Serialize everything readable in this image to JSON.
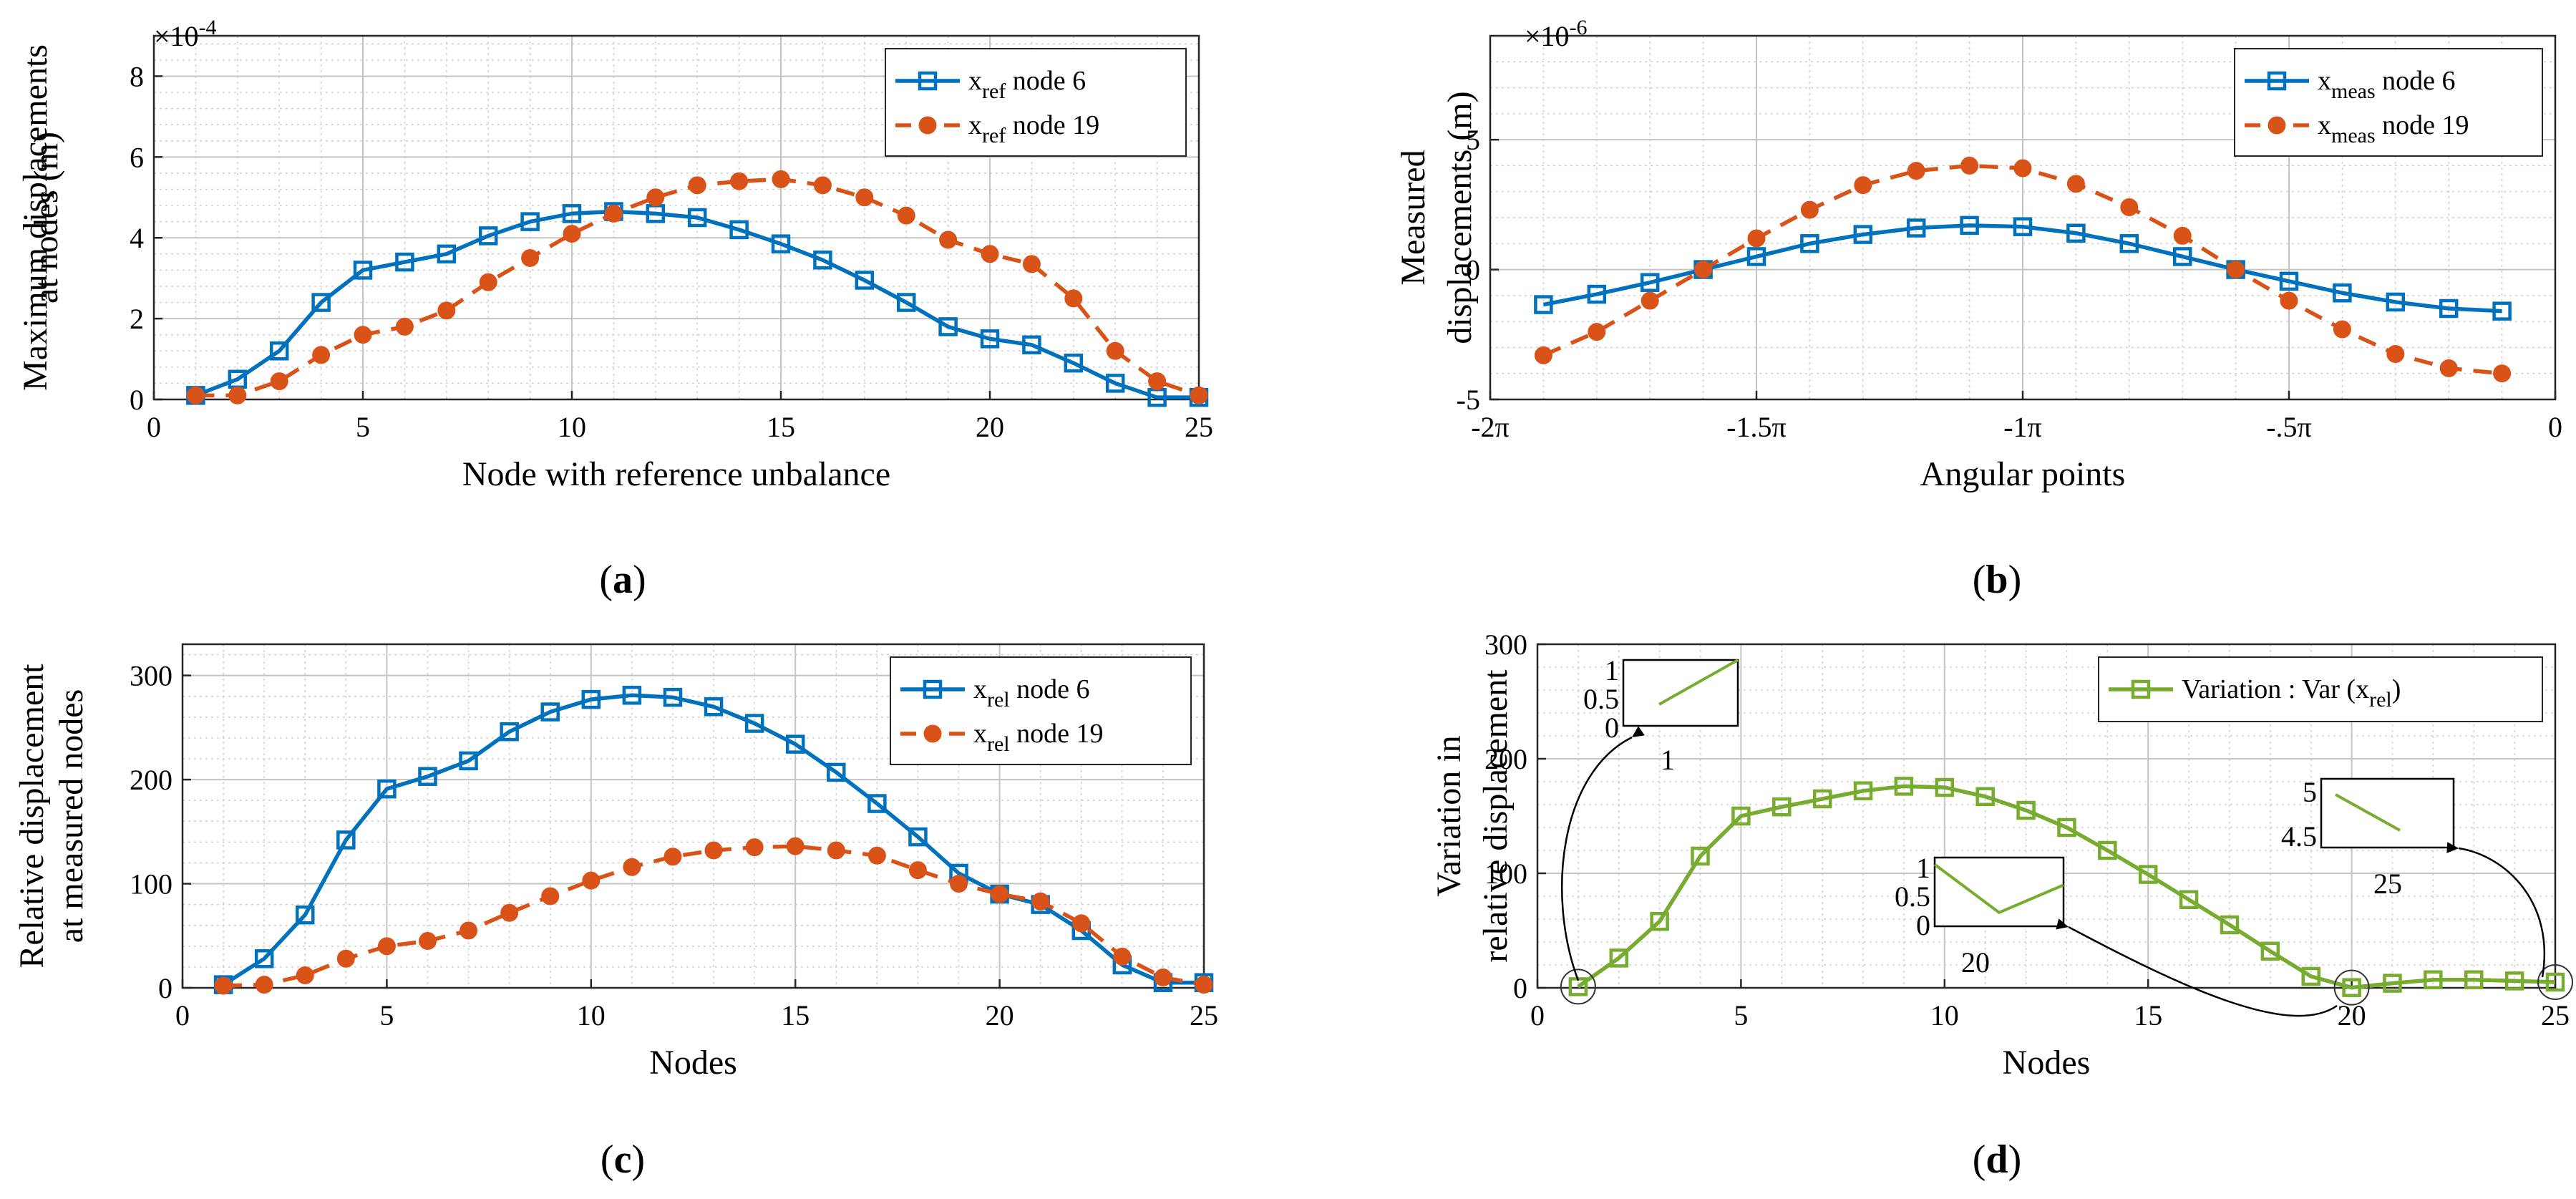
{
  "colors": {
    "blue": "#0072BD",
    "orange": "#D95319",
    "green": "#77AC30",
    "grid": "#d0d0d0",
    "frame": "#262626"
  },
  "chart_data": [
    {
      "id": "a",
      "type": "line",
      "caption": "a",
      "xlabel": "Node with reference unbalance",
      "ylabel_lines": [
        "Maximum displacements",
        "at nodes (m)"
      ],
      "exponent": "×10-4",
      "exp_base": "×10",
      "exp_power": "-4",
      "xlim": [
        0,
        25
      ],
      "ylim": [
        0,
        9
      ],
      "xticks": [
        0,
        5,
        10,
        15,
        20,
        25
      ],
      "xtick_labels": [
        "0",
        "5",
        "10",
        "15",
        "20",
        "25"
      ],
      "yticks": [
        0,
        2,
        4,
        6,
        8
      ],
      "ytick_labels": [
        "0",
        "2",
        "4",
        "6",
        "8"
      ],
      "grid": true,
      "legend": "top-right",
      "x": [
        1,
        2,
        3,
        4,
        5,
        6,
        7,
        8,
        9,
        10,
        11,
        12,
        13,
        14,
        15,
        16,
        17,
        18,
        19,
        20,
        21,
        22,
        23,
        24,
        25
      ],
      "series": [
        {
          "name": "xref node 6",
          "name_main": "x",
          "name_sub": "ref",
          "name_rest": " node 6",
          "style": "solid",
          "marker": "square",
          "color": "#0072BD",
          "values": [
            0.1,
            0.5,
            1.2,
            2.4,
            3.2,
            3.4,
            3.6,
            4.05,
            4.4,
            4.6,
            4.65,
            4.6,
            4.5,
            4.2,
            3.85,
            3.45,
            2.95,
            2.4,
            1.8,
            1.5,
            1.35,
            0.9,
            0.4,
            0.05,
            0.05
          ]
        },
        {
          "name": "xref node 19",
          "name_main": "x",
          "name_sub": "ref",
          "name_rest": " node 19",
          "style": "dashed",
          "marker": "circle",
          "color": "#D95319",
          "values": [
            0.1,
            0.1,
            0.45,
            1.1,
            1.6,
            1.8,
            2.2,
            2.9,
            3.5,
            4.1,
            4.6,
            5.0,
            5.3,
            5.4,
            5.45,
            5.3,
            5.0,
            4.55,
            3.95,
            3.6,
            3.35,
            2.5,
            1.2,
            0.45,
            0.1
          ]
        }
      ]
    },
    {
      "id": "b",
      "type": "line",
      "caption": "b",
      "xlabel": "Angular points",
      "ylabel_lines": [
        "Measured",
        "displacements (m)"
      ],
      "exponent": "×10-6",
      "exp_base": "×10",
      "exp_power": "-6",
      "xlim": [
        -2,
        0
      ],
      "ylim": [
        -5,
        9
      ],
      "xticks": [
        -2,
        -1.5,
        -1,
        -0.5,
        0
      ],
      "xtick_labels": [
        "-2π",
        "-1.5π",
        "-1π",
        "-.5π",
        "0"
      ],
      "yticks": [
        -5,
        0,
        5
      ],
      "ytick_labels": [
        "-5",
        "0",
        "5"
      ],
      "grid": true,
      "legend": "top-right",
      "x": [
        -1.9,
        -1.8,
        -1.7,
        -1.6,
        -1.5,
        -1.4,
        -1.3,
        -1.2,
        -1.1,
        -1.0,
        -0.9,
        -0.8,
        -0.7,
        -0.6,
        -0.5,
        -0.4,
        -0.3,
        -0.2,
        -0.1
      ],
      "series": [
        {
          "name": "xmeas node 6",
          "name_main": "x",
          "name_sub": "meas",
          "name_rest": " node 6",
          "style": "solid",
          "marker": "square",
          "color": "#0072BD",
          "values": [
            -1.35,
            -0.95,
            -0.5,
            0.0,
            0.5,
            1.0,
            1.35,
            1.6,
            1.7,
            1.65,
            1.4,
            1.0,
            0.5,
            0.0,
            -0.45,
            -0.9,
            -1.25,
            -1.5,
            -1.6
          ]
        },
        {
          "name": "xmeas node 19",
          "name_main": "x",
          "name_sub": "meas",
          "name_rest": " node 19",
          "style": "dashed",
          "marker": "circle",
          "color": "#D95319",
          "values": [
            -3.3,
            -2.4,
            -1.2,
            0.0,
            1.2,
            2.3,
            3.25,
            3.8,
            4.0,
            3.9,
            3.3,
            2.4,
            1.3,
            0.0,
            -1.2,
            -2.3,
            -3.25,
            -3.8,
            -4.0
          ]
        }
      ]
    },
    {
      "id": "c",
      "type": "line",
      "caption": "c",
      "xlabel": "Nodes",
      "ylabel_lines": [
        "Relative displacement",
        "at measured nodes"
      ],
      "exponent": "",
      "xlim": [
        0,
        25
      ],
      "ylim": [
        0,
        330
      ],
      "xticks": [
        0,
        5,
        10,
        15,
        20,
        25
      ],
      "xtick_labels": [
        "0",
        "5",
        "10",
        "15",
        "20",
        "25"
      ],
      "yticks": [
        0,
        100,
        200,
        300
      ],
      "ytick_labels": [
        "0",
        "100",
        "200",
        "300"
      ],
      "grid": true,
      "legend": "top-right",
      "x": [
        1,
        2,
        3,
        4,
        5,
        6,
        7,
        8,
        9,
        10,
        11,
        12,
        13,
        14,
        15,
        16,
        17,
        18,
        19,
        20,
        21,
        22,
        23,
        24,
        25
      ],
      "series": [
        {
          "name": "xrel node 6",
          "name_main": "x",
          "name_sub": "rel",
          "name_rest": " node 6",
          "style": "solid",
          "marker": "square",
          "color": "#0072BD",
          "values": [
            3,
            28,
            70,
            142,
            191,
            203,
            218,
            246,
            265,
            277,
            281,
            279,
            270,
            254,
            234,
            207,
            177,
            145,
            110,
            90,
            80,
            55,
            22,
            5,
            5
          ]
        },
        {
          "name": "xrel node 19",
          "name_main": "x",
          "name_sub": "rel",
          "name_rest": " node 19",
          "style": "dashed",
          "marker": "circle",
          "color": "#D95319",
          "values": [
            2,
            3,
            12,
            28,
            40,
            45,
            55,
            72,
            88,
            103,
            116,
            126,
            132,
            135,
            136,
            132,
            127,
            113,
            100,
            90,
            83,
            62,
            30,
            10,
            3
          ]
        }
      ]
    },
    {
      "id": "d",
      "type": "line",
      "caption": "d",
      "xlabel": "Nodes",
      "ylabel_lines": [
        "Variation  in",
        "relative displacement"
      ],
      "exponent": "",
      "xlim": [
        0,
        25
      ],
      "ylim": [
        0,
        300
      ],
      "xticks": [
        0,
        5,
        10,
        15,
        20,
        25
      ],
      "xtick_labels": [
        "0",
        "5",
        "10",
        "15",
        "20",
        "25"
      ],
      "yticks": [
        0,
        100,
        200,
        300
      ],
      "ytick_labels": [
        "0",
        "100",
        "200",
        "300"
      ],
      "grid": true,
      "legend": "top-right",
      "x": [
        1,
        2,
        3,
        4,
        5,
        6,
        7,
        8,
        9,
        10,
        11,
        12,
        13,
        14,
        15,
        16,
        17,
        18,
        19,
        20,
        21,
        22,
        23,
        24,
        25
      ],
      "series": [
        {
          "name": "Variation : Var (xrel)",
          "name_main": "Variation : Var (x",
          "name_sub": "rel",
          "name_rest": ")",
          "style": "solid",
          "marker": "square",
          "color": "#77AC30",
          "values": [
            1,
            26,
            58,
            115,
            150,
            158,
            165,
            172,
            176,
            175,
            167,
            155,
            140,
            120,
            99,
            77,
            55,
            32,
            10,
            0.2,
            4,
            7,
            7,
            6,
            5
          ]
        }
      ],
      "insets": [
        {
          "xticks": [
            "1"
          ],
          "yticks": [
            "1",
            "0.5",
            "0"
          ],
          "ylim": [
            0,
            1
          ],
          "x": [
            1,
            1.4
          ],
          "values": [
            0.5,
            1
          ]
        },
        {
          "xticks": [
            "20"
          ],
          "yticks": [
            "1",
            "0.5",
            "0"
          ],
          "ylim": [
            0,
            1
          ],
          "x": [
            19,
            20,
            21
          ],
          "values": [
            0.9,
            0.2,
            0.6
          ]
        },
        {
          "xticks": [
            "25"
          ],
          "yticks": [
            "5",
            "4.5"
          ],
          "ylim": [
            4.4,
            5.3
          ],
          "x": [
            24.4,
            25
          ],
          "values": [
            5.1,
            4.75
          ]
        }
      ]
    }
  ]
}
